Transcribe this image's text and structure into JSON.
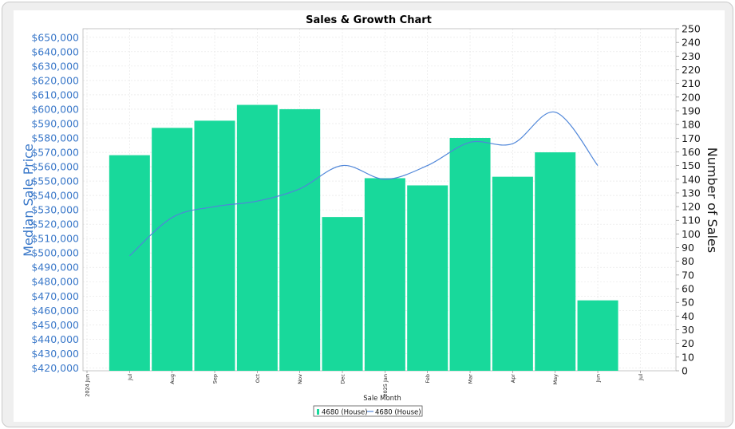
{
  "chart_data": {
    "type": "bar+line",
    "title": "Sales & Growth Chart",
    "xlabel": "Sale Month",
    "x_ticks": [
      "2024 Jun",
      "Jul",
      "Aug",
      "Sep",
      "Oct",
      "Nov",
      "Dec",
      "2025 Jan",
      "Feb",
      "Mar",
      "Apr",
      "May",
      "Jun",
      "Jul"
    ],
    "categories": [
      "Jul",
      "Aug",
      "Sep",
      "Oct",
      "Nov",
      "Dec",
      "Jan",
      "Feb",
      "Mar",
      "Apr",
      "May",
      "Jun"
    ],
    "left_axis": {
      "label": "Median Sale Price",
      "ylim": [
        418000,
        656000
      ],
      "ticks": [
        420000,
        430000,
        440000,
        450000,
        460000,
        470000,
        480000,
        490000,
        500000,
        510000,
        520000,
        530000,
        540000,
        550000,
        560000,
        570000,
        580000,
        590000,
        600000,
        610000,
        620000,
        630000,
        640000,
        650000
      ],
      "tick_labels": [
        "$420,000",
        "$430,000",
        "$440,000",
        "$450,000",
        "$460,000",
        "$470,000",
        "$480,000",
        "$490,000",
        "$500,000",
        "$510,000",
        "$520,000",
        "$530,000",
        "$540,000",
        "$550,000",
        "$560,000",
        "$570,000",
        "$580,000",
        "$590,000",
        "$600,000",
        "$610,000",
        "$620,000",
        "$630,000",
        "$640,000",
        "$650,000"
      ]
    },
    "right_axis": {
      "label": "Number of Sales",
      "ylim": [
        0,
        250
      ],
      "ticks": [
        0,
        10,
        20,
        30,
        40,
        50,
        60,
        70,
        80,
        90,
        100,
        110,
        120,
        130,
        140,
        150,
        160,
        170,
        180,
        190,
        200,
        210,
        220,
        230,
        240,
        250
      ],
      "tick_labels": [
        "0",
        "10",
        "20",
        "30",
        "40",
        "50",
        "60",
        "70",
        "80",
        "90",
        "100",
        "110",
        "120",
        "130",
        "140",
        "150",
        "160",
        "170",
        "180",
        "190",
        "200",
        "210",
        "220",
        "230",
        "240",
        "250"
      ]
    },
    "series": [
      {
        "name": "4680 (House)",
        "kind": "bar",
        "axis": "left",
        "color": "#18d99b",
        "values": [
          568000,
          587000,
          592000,
          603000,
          600000,
          525000,
          552000,
          547000,
          580000,
          553000,
          570000,
          467000
        ]
      },
      {
        "name": "4680 (House)",
        "kind": "line",
        "axis": "right",
        "color": "#4f86d9",
        "values": [
          84,
          112,
          120,
          124,
          133,
          150,
          140,
          150,
          167,
          166,
          189,
          150
        ]
      }
    ],
    "grid": true,
    "legend": {
      "position": "bottom-center",
      "items": [
        "4680 (House)",
        "4680 (House)"
      ]
    }
  }
}
